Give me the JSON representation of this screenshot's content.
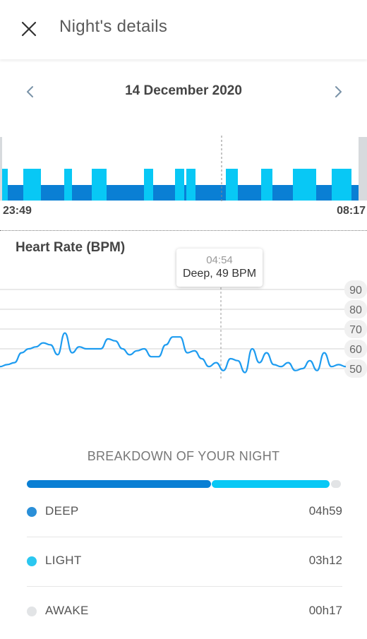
{
  "header": {
    "title": "Night's details",
    "close_icon": "close-icon"
  },
  "date_nav": {
    "date": "14 December 2020",
    "prev_icon": "chevron-left-icon",
    "next_icon": "chevron-right-icon"
  },
  "hypnogram": {
    "start_time": "23:49",
    "end_time": "08:17",
    "colors": {
      "deep": "#0a7fd4",
      "light": "#08c8f5",
      "awake": "#d7dadd"
    }
  },
  "heart_rate": {
    "title": "Heart Rate (BPM)",
    "tooltip": {
      "time": "04:54",
      "value": "Deep, 49 BPM"
    },
    "y_ticks": [
      "90",
      "80",
      "70",
      "60",
      "50"
    ]
  },
  "chart_data": {
    "type": "line",
    "title": "Heart Rate (BPM)",
    "ylim": [
      45,
      92
    ],
    "y_ticks": [
      90,
      80,
      70,
      60,
      50
    ],
    "grid": true,
    "series": [
      {
        "values": [
          51,
          52,
          53,
          58,
          60,
          61,
          63,
          62,
          57,
          68,
          58,
          61,
          60,
          60,
          60,
          65,
          64,
          60,
          57,
          59,
          60,
          56,
          56,
          62,
          66,
          66,
          58,
          59,
          55,
          51,
          53,
          49,
          55,
          54,
          48,
          60,
          53,
          58,
          52,
          51,
          53,
          49,
          50,
          54,
          49,
          58,
          51,
          52,
          51
        ]
      }
    ]
  },
  "breakdown": {
    "title": "BREAKDOWN OF YOUR NIGHT",
    "items": [
      {
        "label": "DEEP",
        "value": "04h59",
        "color": "#2a8fd8"
      },
      {
        "label": "LIGHT",
        "value": "03h12",
        "color": "#2bc7f0"
      },
      {
        "label": "AWAKE",
        "value": "00h17",
        "color": "#e2e4e6"
      }
    ]
  }
}
